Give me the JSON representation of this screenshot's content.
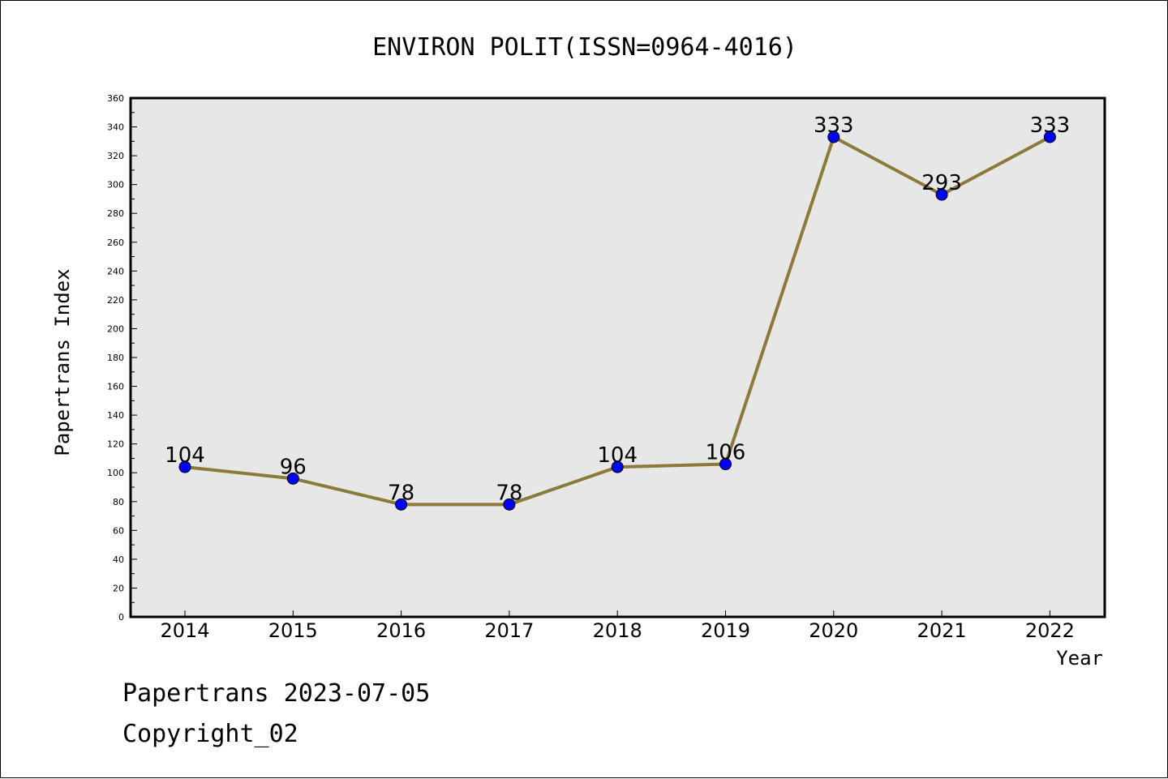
{
  "chart_data": {
    "type": "line",
    "title": "ENVIRON POLIT(ISSN=0964-4016)",
    "xlabel": "Year",
    "ylabel": "Papertrans Index",
    "x": [
      "2014",
      "2015",
      "2016",
      "2017",
      "2018",
      "2019",
      "2020",
      "2021",
      "2022"
    ],
    "values": [
      104,
      96,
      78,
      78,
      104,
      106,
      333,
      293,
      333
    ],
    "ylim": [
      0,
      360
    ],
    "ytick_step": 20,
    "grid": false,
    "legend": "none",
    "colors": {
      "line": "#8b7a3a",
      "marker": "#0000ff",
      "plot_background": "#e7e7e7"
    }
  },
  "footer": {
    "line1": "Papertrans 2023-07-05",
    "line2": "Copyright_02"
  }
}
